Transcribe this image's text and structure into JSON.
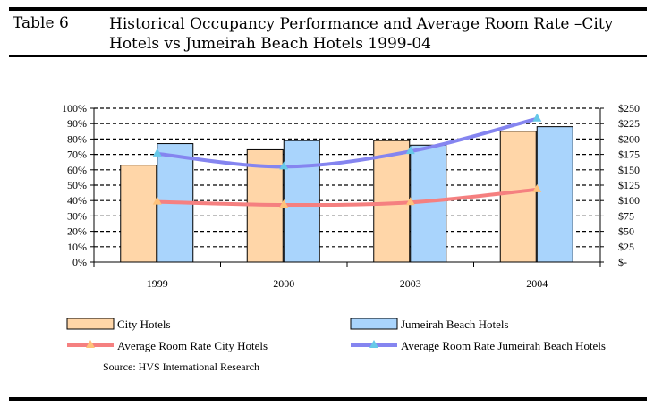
{
  "table": {
    "label": "Table 6",
    "title_line1": "Historical Occupancy Performance and Average Room Rate –City",
    "title_line2": "Hotels vs Jumeirah Beach Hotels 1999-04"
  },
  "colors": {
    "city_bar": "#FFD6A8",
    "jumeirah_bar": "#A9D4FC",
    "city_rate_line": "#F58080",
    "jumeirah_rate_line": "#8585F0",
    "city_rate_marker": "#FFC27A",
    "jumeirah_rate_marker": "#66C8E8"
  },
  "chart_data": {
    "type": "bar",
    "categories": [
      "1999",
      "2000",
      "2003",
      "2004"
    ],
    "series": [
      {
        "name": "City Hotels",
        "type": "bar",
        "axis": "left",
        "values": [
          63,
          73,
          79,
          85
        ]
      },
      {
        "name": "Jumeirah Beach Hotels",
        "type": "bar",
        "axis": "left",
        "values": [
          77,
          79,
          76,
          88
        ]
      },
      {
        "name": "Average Room Rate City Hotels",
        "type": "line",
        "axis": "right",
        "values": [
          98,
          93,
          97,
          118
        ]
      },
      {
        "name": "Average Room Rate Jumeirah Beach Hotels",
        "type": "line",
        "axis": "right",
        "values": [
          176,
          155,
          180,
          233
        ]
      }
    ],
    "y_left": {
      "min": 0,
      "max": 100,
      "ticks": [
        "0%",
        "10%",
        "20%",
        "30%",
        "40%",
        "50%",
        "60%",
        "70%",
        "80%",
        "90%",
        "100%"
      ]
    },
    "y_right": {
      "min": 0,
      "max": 250,
      "ticks": [
        "$-",
        "$25",
        "$50",
        "$75",
        "$100",
        "$125",
        "$150",
        "$175",
        "$200",
        "$225",
        "$250"
      ]
    },
    "grid": "horizontal dashed",
    "legend_position": "bottom",
    "source": "Source: HVS International Research"
  }
}
